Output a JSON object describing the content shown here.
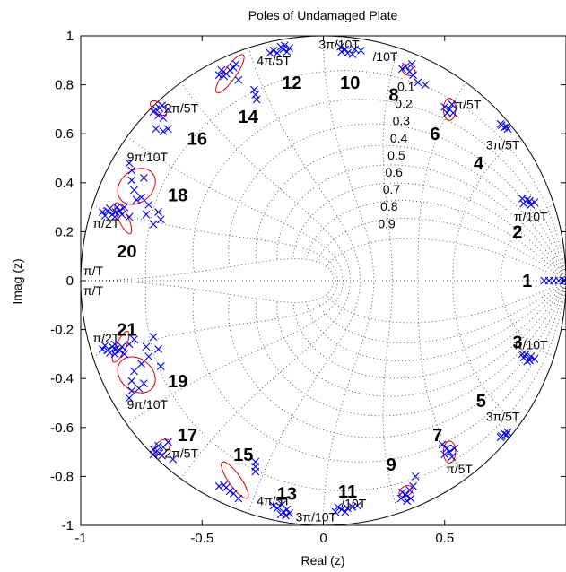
{
  "chart_data": {
    "type": "scatter",
    "title": "Poles of Undamaged Plate",
    "xlabel": "Real (z)",
    "ylabel": "Imag (z)",
    "xlim": [
      -1,
      1
    ],
    "ylim": [
      -1,
      1
    ],
    "x_ticks": [
      -1,
      -0.5,
      0,
      0.5
    ],
    "x_tick_labels": [
      "-1",
      "-0.5",
      "0",
      "0.5"
    ],
    "y_ticks": [
      1,
      0.8,
      0.6,
      0.4,
      0.2,
      0,
      -0.2,
      -0.4,
      -0.6,
      -0.8,
      -1
    ],
    "y_tick_labels": [
      "1",
      "0.8",
      "0.6",
      "0.4",
      "0.2",
      "0",
      "-0.2",
      "-0.4",
      "-0.6",
      "-0.8",
      "-1"
    ],
    "grid": "zplane",
    "marker": "x",
    "marker_color": "#0000ee",
    "ellipse_color": "#dd0000",
    "unit_circle": true,
    "damping_labels": [
      "0.1",
      "0.2",
      "0.3",
      "0.4",
      "0.5",
      "0.6",
      "0.7",
      "0.8",
      "0.9"
    ],
    "frequency_labels": [
      {
        "text": "π/10T",
        "x": 0.855,
        "y": 0.262
      },
      {
        "text": "π/5T",
        "x": 0.595,
        "y": 0.72
      },
      {
        "text": "3π/5T",
        "x": 0.74,
        "y": 0.555
      },
      {
        "text": "3π/10T",
        "x": 0.065,
        "y": 0.965
      },
      {
        "text": "/10T",
        "x": 0.255,
        "y": 0.915
      },
      {
        "text": "4π/5T",
        "x": -0.205,
        "y": 0.9
      },
      {
        "text": "2π/5T",
        "x": -0.585,
        "y": 0.705
      },
      {
        "text": "9π/10T",
        "x": -0.725,
        "y": 0.505
      },
      {
        "text": "π/2T",
        "x": -0.895,
        "y": 0.235
      },
      {
        "text": "π/T",
        "x": -0.948,
        "y": 0.04
      },
      {
        "text": "π/T",
        "x": -0.948,
        "y": -0.04
      },
      {
        "text": "π/2T",
        "x": -0.895,
        "y": -0.235
      },
      {
        "text": "9π/10T",
        "x": -0.725,
        "y": -0.505
      },
      {
        "text": "2π/5T",
        "x": -0.585,
        "y": -0.705
      },
      {
        "text": "4π/5T",
        "x": -0.205,
        "y": -0.9
      },
      {
        "text": "3π/10T",
        "x": -0.03,
        "y": -0.965
      },
      {
        "text": "/10T",
        "x": 0.125,
        "y": -0.91
      },
      {
        "text": "π/10T",
        "x": 0.855,
        "y": -0.262
      },
      {
        "text": "π/5T",
        "x": 0.56,
        "y": -0.77
      },
      {
        "text": "3π/5T",
        "x": 0.74,
        "y": -0.555
      }
    ],
    "pole_numbers": [
      {
        "text": "1",
        "x": 0.84,
        "y": 0.0
      },
      {
        "text": "2",
        "x": 0.8,
        "y": 0.2
      },
      {
        "text": "3",
        "x": 0.8,
        "y": -0.25
      },
      {
        "text": "4",
        "x": 0.64,
        "y": 0.48
      },
      {
        "text": "5",
        "x": 0.65,
        "y": -0.49
      },
      {
        "text": "6",
        "x": 0.46,
        "y": 0.6
      },
      {
        "text": "7",
        "x": 0.47,
        "y": -0.63
      },
      {
        "text": "8",
        "x": 0.29,
        "y": 0.76
      },
      {
        "text": "9",
        "x": 0.28,
        "y": -0.75
      },
      {
        "text": "10",
        "x": 0.11,
        "y": 0.81
      },
      {
        "text": "11",
        "x": 0.1,
        "y": -0.86
      },
      {
        "text": "12",
        "x": -0.13,
        "y": 0.81
      },
      {
        "text": "13",
        "x": -0.15,
        "y": -0.87
      },
      {
        "text": "14",
        "x": -0.31,
        "y": 0.67
      },
      {
        "text": "15",
        "x": -0.33,
        "y": -0.71
      },
      {
        "text": "16",
        "x": -0.52,
        "y": 0.58
      },
      {
        "text": "17",
        "x": -0.56,
        "y": -0.63
      },
      {
        "text": "18",
        "x": -0.6,
        "y": 0.35
      },
      {
        "text": "19",
        "x": -0.6,
        "y": -0.41
      },
      {
        "text": "20",
        "x": -0.81,
        "y": 0.12
      },
      {
        "text": "21",
        "x": -0.81,
        "y": -0.2
      }
    ],
    "ellipses": [
      {
        "cx": 0.52,
        "cy": 0.7,
        "rx": 0.025,
        "ry": 0.045,
        "angle": 0
      },
      {
        "cx": 0.52,
        "cy": -0.7,
        "rx": 0.025,
        "ry": 0.045,
        "angle": 0
      },
      {
        "cx": 0.35,
        "cy": 0.86,
        "rx": 0.03,
        "ry": 0.02,
        "angle": -30
      },
      {
        "cx": 0.34,
        "cy": -0.86,
        "rx": 0.03,
        "ry": 0.02,
        "angle": 30
      },
      {
        "cx": -0.385,
        "cy": 0.845,
        "rx": 0.095,
        "ry": 0.025,
        "angle": 55
      },
      {
        "cx": -0.365,
        "cy": -0.815,
        "rx": 0.09,
        "ry": 0.025,
        "angle": -55
      },
      {
        "cx": -0.68,
        "cy": 0.705,
        "rx": 0.04,
        "ry": 0.02,
        "angle": -40
      },
      {
        "cx": -0.665,
        "cy": -0.68,
        "rx": 0.04,
        "ry": 0.025,
        "angle": 40
      },
      {
        "cx": -0.77,
        "cy": 0.385,
        "rx": 0.085,
        "ry": 0.065,
        "angle": 40
      },
      {
        "cx": -0.77,
        "cy": -0.385,
        "rx": 0.085,
        "ry": 0.065,
        "angle": -40
      },
      {
        "cx": -0.825,
        "cy": 0.255,
        "rx": 0.07,
        "ry": 0.02,
        "angle": -65
      },
      {
        "cx": -0.835,
        "cy": -0.27,
        "rx": 0.07,
        "ry": 0.02,
        "angle": 65
      }
    ],
    "poles": [
      [
        0.91,
        0
      ],
      [
        0.93,
        0
      ],
      [
        0.95,
        0
      ],
      [
        0.97,
        0
      ],
      [
        0.99,
        0
      ],
      [
        0.995,
        0
      ],
      [
        0.825,
        0.315
      ],
      [
        0.84,
        0.33
      ],
      [
        0.85,
        0.325
      ],
      [
        0.87,
        0.32
      ],
      [
        0.82,
        0.335
      ],
      [
        0.855,
        0.31
      ],
      [
        0.825,
        -0.315
      ],
      [
        0.84,
        -0.33
      ],
      [
        0.85,
        -0.325
      ],
      [
        0.87,
        -0.32
      ],
      [
        0.82,
        -0.3
      ],
      [
        0.855,
        -0.31
      ],
      [
        0.835,
        -0.3
      ],
      [
        0.735,
        0.635
      ],
      [
        0.745,
        0.625
      ],
      [
        0.755,
        0.63
      ],
      [
        0.73,
        0.64
      ],
      [
        0.76,
        0.62
      ],
      [
        0.735,
        -0.635
      ],
      [
        0.745,
        -0.625
      ],
      [
        0.755,
        -0.63
      ],
      [
        0.73,
        -0.64
      ],
      [
        0.76,
        -0.62
      ],
      [
        0.51,
        0.685
      ],
      [
        0.52,
        0.7
      ],
      [
        0.53,
        0.72
      ],
      [
        0.5,
        0.71
      ],
      [
        0.535,
        0.685
      ],
      [
        0.51,
        -0.685
      ],
      [
        0.52,
        -0.7
      ],
      [
        0.53,
        -0.72
      ],
      [
        0.5,
        -0.71
      ],
      [
        0.54,
        -0.685
      ],
      [
        0.49,
        -0.67
      ],
      [
        0.325,
        0.865
      ],
      [
        0.34,
        0.875
      ],
      [
        0.355,
        0.855
      ],
      [
        0.37,
        0.84
      ],
      [
        0.365,
        0.885
      ],
      [
        0.39,
        0.81
      ],
      [
        0.42,
        0.8
      ],
      [
        0.325,
        -0.865
      ],
      [
        0.34,
        -0.875
      ],
      [
        0.355,
        -0.855
      ],
      [
        0.37,
        -0.84
      ],
      [
        0.32,
        -0.89
      ],
      [
        0.36,
        -0.89
      ],
      [
        0.38,
        -0.8
      ],
      [
        0.345,
        -0.9
      ],
      [
        0.075,
        0.935
      ],
      [
        0.09,
        0.945
      ],
      [
        0.1,
        0.93
      ],
      [
        0.12,
        0.925
      ],
      [
        0.13,
        0.945
      ],
      [
        0.155,
        0.94
      ],
      [
        0.07,
        0.955
      ],
      [
        0.075,
        -0.935
      ],
      [
        0.09,
        -0.945
      ],
      [
        0.1,
        -0.93
      ],
      [
        0.12,
        -0.925
      ],
      [
        0.14,
        -0.92
      ],
      [
        0.05,
        -0.945
      ],
      [
        0.06,
        -0.925
      ],
      [
        -0.14,
        0.95
      ],
      [
        -0.15,
        0.935
      ],
      [
        -0.165,
        0.945
      ],
      [
        -0.175,
        0.955
      ],
      [
        -0.19,
        0.93
      ],
      [
        -0.205,
        0.94
      ],
      [
        -0.22,
        0.93
      ],
      [
        -0.16,
        0.96
      ],
      [
        -0.14,
        -0.95
      ],
      [
        -0.15,
        -0.935
      ],
      [
        -0.165,
        -0.945
      ],
      [
        -0.175,
        -0.955
      ],
      [
        -0.19,
        -0.93
      ],
      [
        -0.205,
        -0.92
      ],
      [
        -0.17,
        -0.915
      ],
      [
        -0.155,
        -0.96
      ],
      [
        -0.37,
        0.87
      ],
      [
        -0.385,
        0.86
      ],
      [
        -0.4,
        0.845
      ],
      [
        -0.41,
        0.835
      ],
      [
        -0.36,
        0.885
      ],
      [
        -0.43,
        0.84
      ],
      [
        -0.35,
        0.82
      ],
      [
        -0.42,
        0.86
      ],
      [
        -0.285,
        0.78
      ],
      [
        -0.28,
        0.76
      ],
      [
        -0.275,
        0.74
      ],
      [
        -0.37,
        -0.87
      ],
      [
        -0.385,
        -0.86
      ],
      [
        -0.4,
        -0.845
      ],
      [
        -0.41,
        -0.835
      ],
      [
        -0.43,
        -0.84
      ],
      [
        -0.35,
        -0.89
      ],
      [
        -0.28,
        -0.78
      ],
      [
        -0.28,
        -0.76
      ],
      [
        -0.28,
        -0.74
      ],
      [
        -0.675,
        0.705
      ],
      [
        -0.69,
        0.7
      ],
      [
        -0.7,
        0.69
      ],
      [
        -0.68,
        0.675
      ],
      [
        -0.665,
        0.715
      ],
      [
        -0.64,
        0.7
      ],
      [
        -0.66,
        0.665
      ],
      [
        -0.69,
        0.62
      ],
      [
        -0.66,
        0.61
      ],
      [
        -0.64,
        0.62
      ],
      [
        -0.675,
        -0.705
      ],
      [
        -0.69,
        -0.7
      ],
      [
        -0.7,
        -0.69
      ],
      [
        -0.68,
        -0.675
      ],
      [
        -0.665,
        -0.715
      ],
      [
        -0.64,
        -0.66
      ],
      [
        -0.66,
        -0.68
      ],
      [
        -0.62,
        -0.73
      ],
      [
        -0.7,
        -0.71
      ],
      [
        -0.8,
        0.48
      ],
      [
        -0.79,
        0.45
      ],
      [
        -0.74,
        0.42
      ],
      [
        -0.78,
        0.37
      ],
      [
        -0.75,
        0.34
      ],
      [
        -0.72,
        0.31
      ],
      [
        -0.82,
        0.3
      ],
      [
        -0.79,
        0.41
      ],
      [
        -0.73,
        0.27
      ],
      [
        -0.7,
        0.23
      ],
      [
        -0.68,
        0.28
      ],
      [
        -0.67,
        0.25
      ],
      [
        -0.77,
        0.33
      ],
      [
        -0.8,
        -0.48
      ],
      [
        -0.79,
        -0.45
      ],
      [
        -0.74,
        -0.42
      ],
      [
        -0.78,
        -0.37
      ],
      [
        -0.75,
        -0.34
      ],
      [
        -0.72,
        -0.31
      ],
      [
        -0.82,
        -0.3
      ],
      [
        -0.79,
        -0.41
      ],
      [
        -0.73,
        -0.27
      ],
      [
        -0.7,
        -0.23
      ],
      [
        -0.68,
        -0.28
      ],
      [
        -0.67,
        -0.35
      ],
      [
        -0.76,
        -0.44
      ],
      [
        -0.91,
        0.28
      ],
      [
        -0.89,
        0.285
      ],
      [
        -0.87,
        0.27
      ],
      [
        -0.855,
        0.28
      ],
      [
        -0.84,
        0.285
      ],
      [
        -0.86,
        0.26
      ],
      [
        -0.9,
        0.265
      ],
      [
        -0.88,
        0.295
      ],
      [
        -0.83,
        0.27
      ],
      [
        -0.8,
        0.26
      ],
      [
        -0.85,
        0.3
      ],
      [
        -0.91,
        -0.28
      ],
      [
        -0.89,
        -0.285
      ],
      [
        -0.87,
        -0.27
      ],
      [
        -0.855,
        -0.28
      ],
      [
        -0.84,
        -0.285
      ],
      [
        -0.86,
        -0.26
      ],
      [
        -0.9,
        -0.265
      ],
      [
        -0.88,
        -0.295
      ],
      [
        -0.83,
        -0.27
      ],
      [
        -0.8,
        -0.26
      ],
      [
        -0.86,
        -0.3
      ],
      [
        -0.78,
        -0.24
      ]
    ]
  }
}
